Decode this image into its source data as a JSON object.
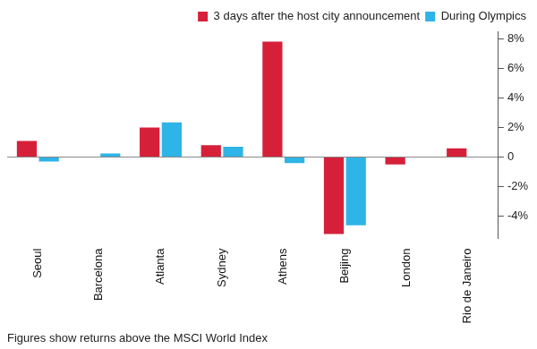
{
  "chart_data": {
    "type": "bar",
    "annotation": "Figures show returns above the MSCI World Index",
    "categories": [
      "Seoul",
      "Barcelona",
      "Atlanta",
      "Sydney",
      "Athens",
      "Beijing",
      "London",
      "Rio de Janeiro"
    ],
    "series": [
      {
        "name": "3 days after the host city announcement",
        "color": "#d6203a",
        "values": [
          1.1,
          null,
          2.0,
          0.8,
          7.8,
          -5.2,
          -0.5,
          0.6
        ]
      },
      {
        "name": "During Olympics",
        "color": "#2eb4e6",
        "values": [
          -0.3,
          0.25,
          2.35,
          0.7,
          -0.4,
          -4.6,
          null,
          null
        ]
      }
    ],
    "ylim": [
      -5.5,
      8.5
    ],
    "yticks": [
      {
        "value": -4,
        "label": "-4%"
      },
      {
        "value": -2,
        "label": "-2%"
      },
      0,
      {
        "value": 2,
        "label": "2%"
      },
      {
        "value": 4,
        "label": "4%"
      },
      {
        "value": 6,
        "label": "6%"
      },
      {
        "value": 8,
        "label": "8%"
      }
    ],
    "grid": false,
    "legend": "top-right",
    "data_labels": false
  }
}
